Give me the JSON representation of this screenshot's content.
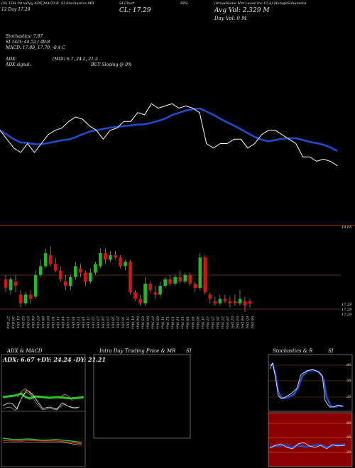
{
  "header": {
    "line1_left": "(N) 1DA IntraDay ADX,MACD,B",
    "line1_left2": "SI,Stochastics,MR",
    "line1_si_chart": "SI Chart",
    "line1_ticker": "BNL",
    "line1_company": "(Broadstone Net Lease Inc Cl A) ManafaSahameen",
    "line2_left": "12  Day        17.29",
    "line2_close": "CL: 17.29",
    "line2_avgvol": "Avg Vol: 2.329 M",
    "line3_dayvol": "Day Vol: 0   M"
  },
  "indicators": {
    "stochastics": "Stochastics: 7.87",
    "si": "SI  14/3: 44.52  / 49.8",
    "macd": "MACD: 17.89,  17.70,  -0.4  C",
    "adx_label": "ADX:",
    "adx_values": "(MGI) 6.7,  24.2,  21.2",
    "adx_signal_label": "ADX  signal:",
    "adx_signal_value": "BUY Sloping @ 0%"
  },
  "price_labels": {
    "top": "19.05",
    "bottom1": "17.29",
    "bottom2": "17.29",
    "bottom3": "17.29"
  },
  "x_dates": [
    "27 Sep",
    "30 Sep",
    "01 Oct",
    "02 Oct",
    "03 Oct",
    "04 Oct",
    "07 Oct",
    "08 Oct",
    "09 Oct",
    "10 Oct",
    "11 Oct",
    "14 Oct",
    "15 Oct",
    "16 Oct",
    "17 Oct",
    "18 Oct",
    "21 Oct",
    "22 Oct",
    "23 Oct",
    "24 Oct",
    "25 Oct",
    "28 Oct",
    "29 Oct",
    "30 Oct",
    "31 Oct",
    "01 Nov",
    "04 Nov",
    "05 Nov",
    "06 Nov",
    "07 Nov",
    "08 Nov",
    "11 Nov",
    "12 Nov",
    "13 Nov",
    "14 Nov",
    "15 Nov",
    "18 Nov",
    "19 Nov",
    "20 Nov",
    "21 Nov",
    "22 Nov",
    "25 Nov",
    "26 Nov",
    "27 Nov",
    "29 Nov",
    "02 Dec",
    "03 Dec",
    "04 Dec",
    "05 Dec",
    "06 Dec"
  ],
  "panels": {
    "adx_title": "ADX  & MACD",
    "adx_values": "ADX: 6.67  +DY: 24.24  -DY: 21.21",
    "intraday_title": "Intra  Day Trading Price  & MR",
    "intraday_si": "SI",
    "stoch_title": "Stochastics & R",
    "stoch_si": "SI",
    "stoch_ticks": [
      "80",
      "50",
      "20"
    ],
    "si_ticks": [
      "80",
      "50",
      "20"
    ]
  },
  "colors": {
    "bullish": "#22bb22",
    "bearish": "#dd1111",
    "ma_line": "#1d4fd6",
    "price_line": "#ffffff",
    "si_panel_bg": "#8b0000"
  },
  "chart_data": {
    "type": "line",
    "title": "",
    "series": [
      {
        "name": "",
        "values": [
          17.9,
          17.7,
          17.5,
          17.4,
          17.6,
          17.4,
          17.6,
          17.8,
          17.9,
          17.95,
          18.1,
          18.2,
          18.15,
          18.0,
          17.9,
          17.7,
          17.9,
          17.95,
          18.1,
          18.1,
          18.3,
          18.25,
          18.5,
          18.4,
          18.45,
          18.5,
          18.4,
          18.45,
          18.4,
          18.3,
          17.6,
          17.5,
          17.6,
          17.6,
          17.7,
          17.7,
          17.5,
          17.6,
          17.8,
          17.9,
          17.9,
          17.8,
          17.7,
          17.6,
          17.3,
          17.3,
          17.2,
          17.25,
          17.2,
          17.1
        ]
      }
    ],
    "candles": [
      {
        "o": 17.85,
        "c": 17.65,
        "h": 17.95,
        "l": 17.55
      },
      {
        "o": 17.6,
        "c": 17.85,
        "h": 17.9,
        "l": 17.5
      },
      {
        "o": 17.8,
        "c": 17.7,
        "h": 17.95,
        "l": 17.55
      },
      {
        "o": 17.5,
        "c": 17.3,
        "h": 17.6,
        "l": 17.2
      },
      {
        "o": 17.3,
        "c": 17.5,
        "h": 17.55,
        "l": 17.25
      },
      {
        "o": 17.5,
        "c": 17.4,
        "h": 17.6,
        "l": 17.3
      },
      {
        "o": 17.45,
        "c": 17.95,
        "h": 18.05,
        "l": 17.4
      },
      {
        "o": 17.95,
        "c": 18.15,
        "h": 18.3,
        "l": 17.9
      },
      {
        "o": 18.15,
        "c": 18.45,
        "h": 18.55,
        "l": 18.1
      },
      {
        "o": 18.4,
        "c": 18.2,
        "h": 18.6,
        "l": 18.15
      },
      {
        "o": 18.2,
        "c": 18.05,
        "h": 18.35,
        "l": 18.0
      },
      {
        "o": 18.05,
        "c": 17.85,
        "h": 18.15,
        "l": 17.8
      },
      {
        "o": 17.8,
        "c": 17.7,
        "h": 17.95,
        "l": 17.6
      },
      {
        "o": 17.7,
        "c": 17.9,
        "h": 17.95,
        "l": 17.6
      },
      {
        "o": 17.9,
        "c": 18.15,
        "h": 18.25,
        "l": 17.85
      },
      {
        "o": 18.1,
        "c": 18.0,
        "h": 18.2,
        "l": 17.9
      },
      {
        "o": 18.0,
        "c": 17.8,
        "h": 18.05,
        "l": 17.7
      },
      {
        "o": 17.8,
        "c": 18.0,
        "h": 18.1,
        "l": 17.75
      },
      {
        "o": 18.0,
        "c": 18.2,
        "h": 18.25,
        "l": 17.95
      },
      {
        "o": 18.15,
        "c": 18.45,
        "h": 18.55,
        "l": 18.1
      },
      {
        "o": 18.45,
        "c": 18.3,
        "h": 18.55,
        "l": 18.2
      },
      {
        "o": 18.3,
        "c": 18.4,
        "h": 18.5,
        "l": 18.25
      },
      {
        "o": 18.4,
        "c": 18.35,
        "h": 18.5,
        "l": 18.3
      },
      {
        "o": 18.35,
        "c": 18.15,
        "h": 18.4,
        "l": 18.1
      },
      {
        "o": 18.15,
        "c": 18.25,
        "h": 18.3,
        "l": 18.05
      },
      {
        "o": 18.25,
        "c": 17.55,
        "h": 18.3,
        "l": 17.5
      },
      {
        "o": 17.55,
        "c": 17.4,
        "h": 17.6,
        "l": 17.35
      },
      {
        "o": 17.4,
        "c": 17.3,
        "h": 17.5,
        "l": 17.25
      },
      {
        "o": 17.3,
        "c": 17.75,
        "h": 17.9,
        "l": 17.25
      },
      {
        "o": 17.75,
        "c": 17.6,
        "h": 17.8,
        "l": 17.55
      },
      {
        "o": 17.55,
        "c": 17.5,
        "h": 17.7,
        "l": 17.4
      },
      {
        "o": 17.5,
        "c": 17.7,
        "h": 17.8,
        "l": 17.45
      },
      {
        "o": 17.7,
        "c": 17.85,
        "h": 17.9,
        "l": 17.65
      },
      {
        "o": 17.85,
        "c": 17.75,
        "h": 17.95,
        "l": 17.7
      },
      {
        "o": 17.75,
        "c": 17.9,
        "h": 17.95,
        "l": 17.7
      },
      {
        "o": 17.9,
        "c": 17.8,
        "h": 18.05,
        "l": 17.75
      },
      {
        "o": 17.8,
        "c": 17.95,
        "h": 18.0,
        "l": 17.75
      },
      {
        "o": 17.95,
        "c": 17.75,
        "h": 18.0,
        "l": 17.7
      },
      {
        "o": 17.75,
        "c": 17.65,
        "h": 17.8,
        "l": 17.55
      },
      {
        "o": 17.65,
        "c": 18.35,
        "h": 18.45,
        "l": 17.6
      },
      {
        "o": 18.35,
        "c": 17.55,
        "h": 18.4,
        "l": 17.5
      },
      {
        "o": 17.5,
        "c": 17.4,
        "h": 17.55,
        "l": 17.3
      },
      {
        "o": 17.35,
        "c": 17.3,
        "h": 17.45,
        "l": 17.25
      },
      {
        "o": 17.3,
        "c": 17.4,
        "h": 17.5,
        "l": 17.25
      },
      {
        "o": 17.4,
        "c": 17.35,
        "h": 17.5,
        "l": 17.3
      },
      {
        "o": 17.35,
        "c": 17.3,
        "h": 17.45,
        "l": 17.2
      },
      {
        "o": 17.35,
        "c": 17.3,
        "h": 17.5,
        "l": 17.25
      },
      {
        "o": 17.3,
        "c": 17.4,
        "h": 17.6,
        "l": 17.25
      },
      {
        "o": 17.35,
        "c": 17.25,
        "h": 17.45,
        "l": 17.1
      },
      {
        "o": 17.35,
        "c": 17.29,
        "h": 17.4,
        "l": 17.2
      }
    ],
    "ylim": [
      17.1,
      19.05
    ]
  }
}
